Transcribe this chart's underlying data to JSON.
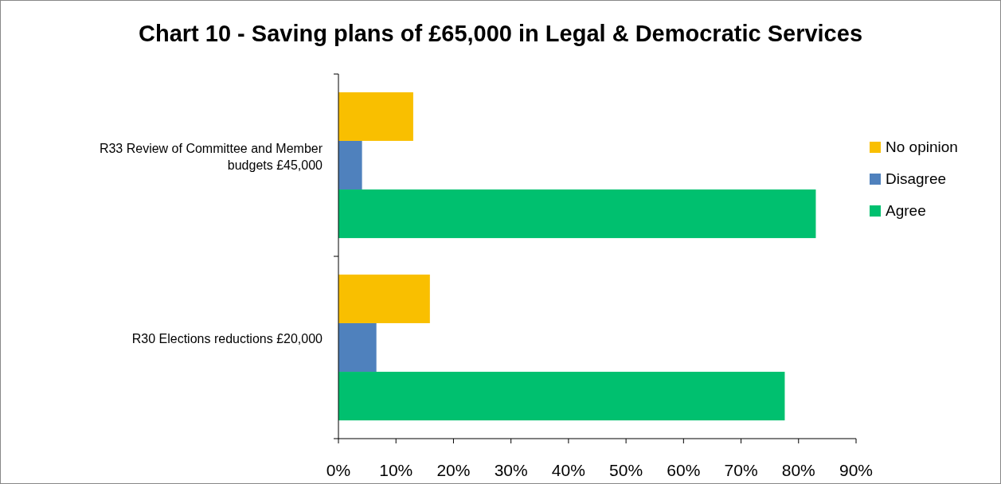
{
  "chart_data": {
    "type": "bar",
    "orientation": "horizontal",
    "title": "Chart 10 - Saving plans of £65,000 in Legal & Democratic Services",
    "categories": [
      "R33 Review of Committee and Member budgets £45,000",
      "R30 Elections reductions £20,000"
    ],
    "series": [
      {
        "name": "Agree",
        "color": "#00c06f",
        "values": [
          83,
          77.6
        ]
      },
      {
        "name": "Disagree",
        "color": "#4f81bd",
        "values": [
          4.1,
          6.6
        ]
      },
      {
        "name": "No opinion",
        "color": "#f9bf00",
        "values": [
          13,
          15.9
        ]
      }
    ],
    "xlim": [
      0,
      90
    ],
    "xticks": [
      {
        "value": 0,
        "label": "0%"
      },
      {
        "value": 10,
        "label": "10%"
      },
      {
        "value": 20,
        "label": "20%"
      },
      {
        "value": 30,
        "label": "30%"
      },
      {
        "value": 40,
        "label": "40%"
      },
      {
        "value": 50,
        "label": "50%"
      },
      {
        "value": 60,
        "label": "60%"
      },
      {
        "value": 70,
        "label": "70%"
      },
      {
        "value": 80,
        "label": "80%"
      },
      {
        "value": 90,
        "label": "90%"
      }
    ],
    "grid": false,
    "legend": "right"
  }
}
